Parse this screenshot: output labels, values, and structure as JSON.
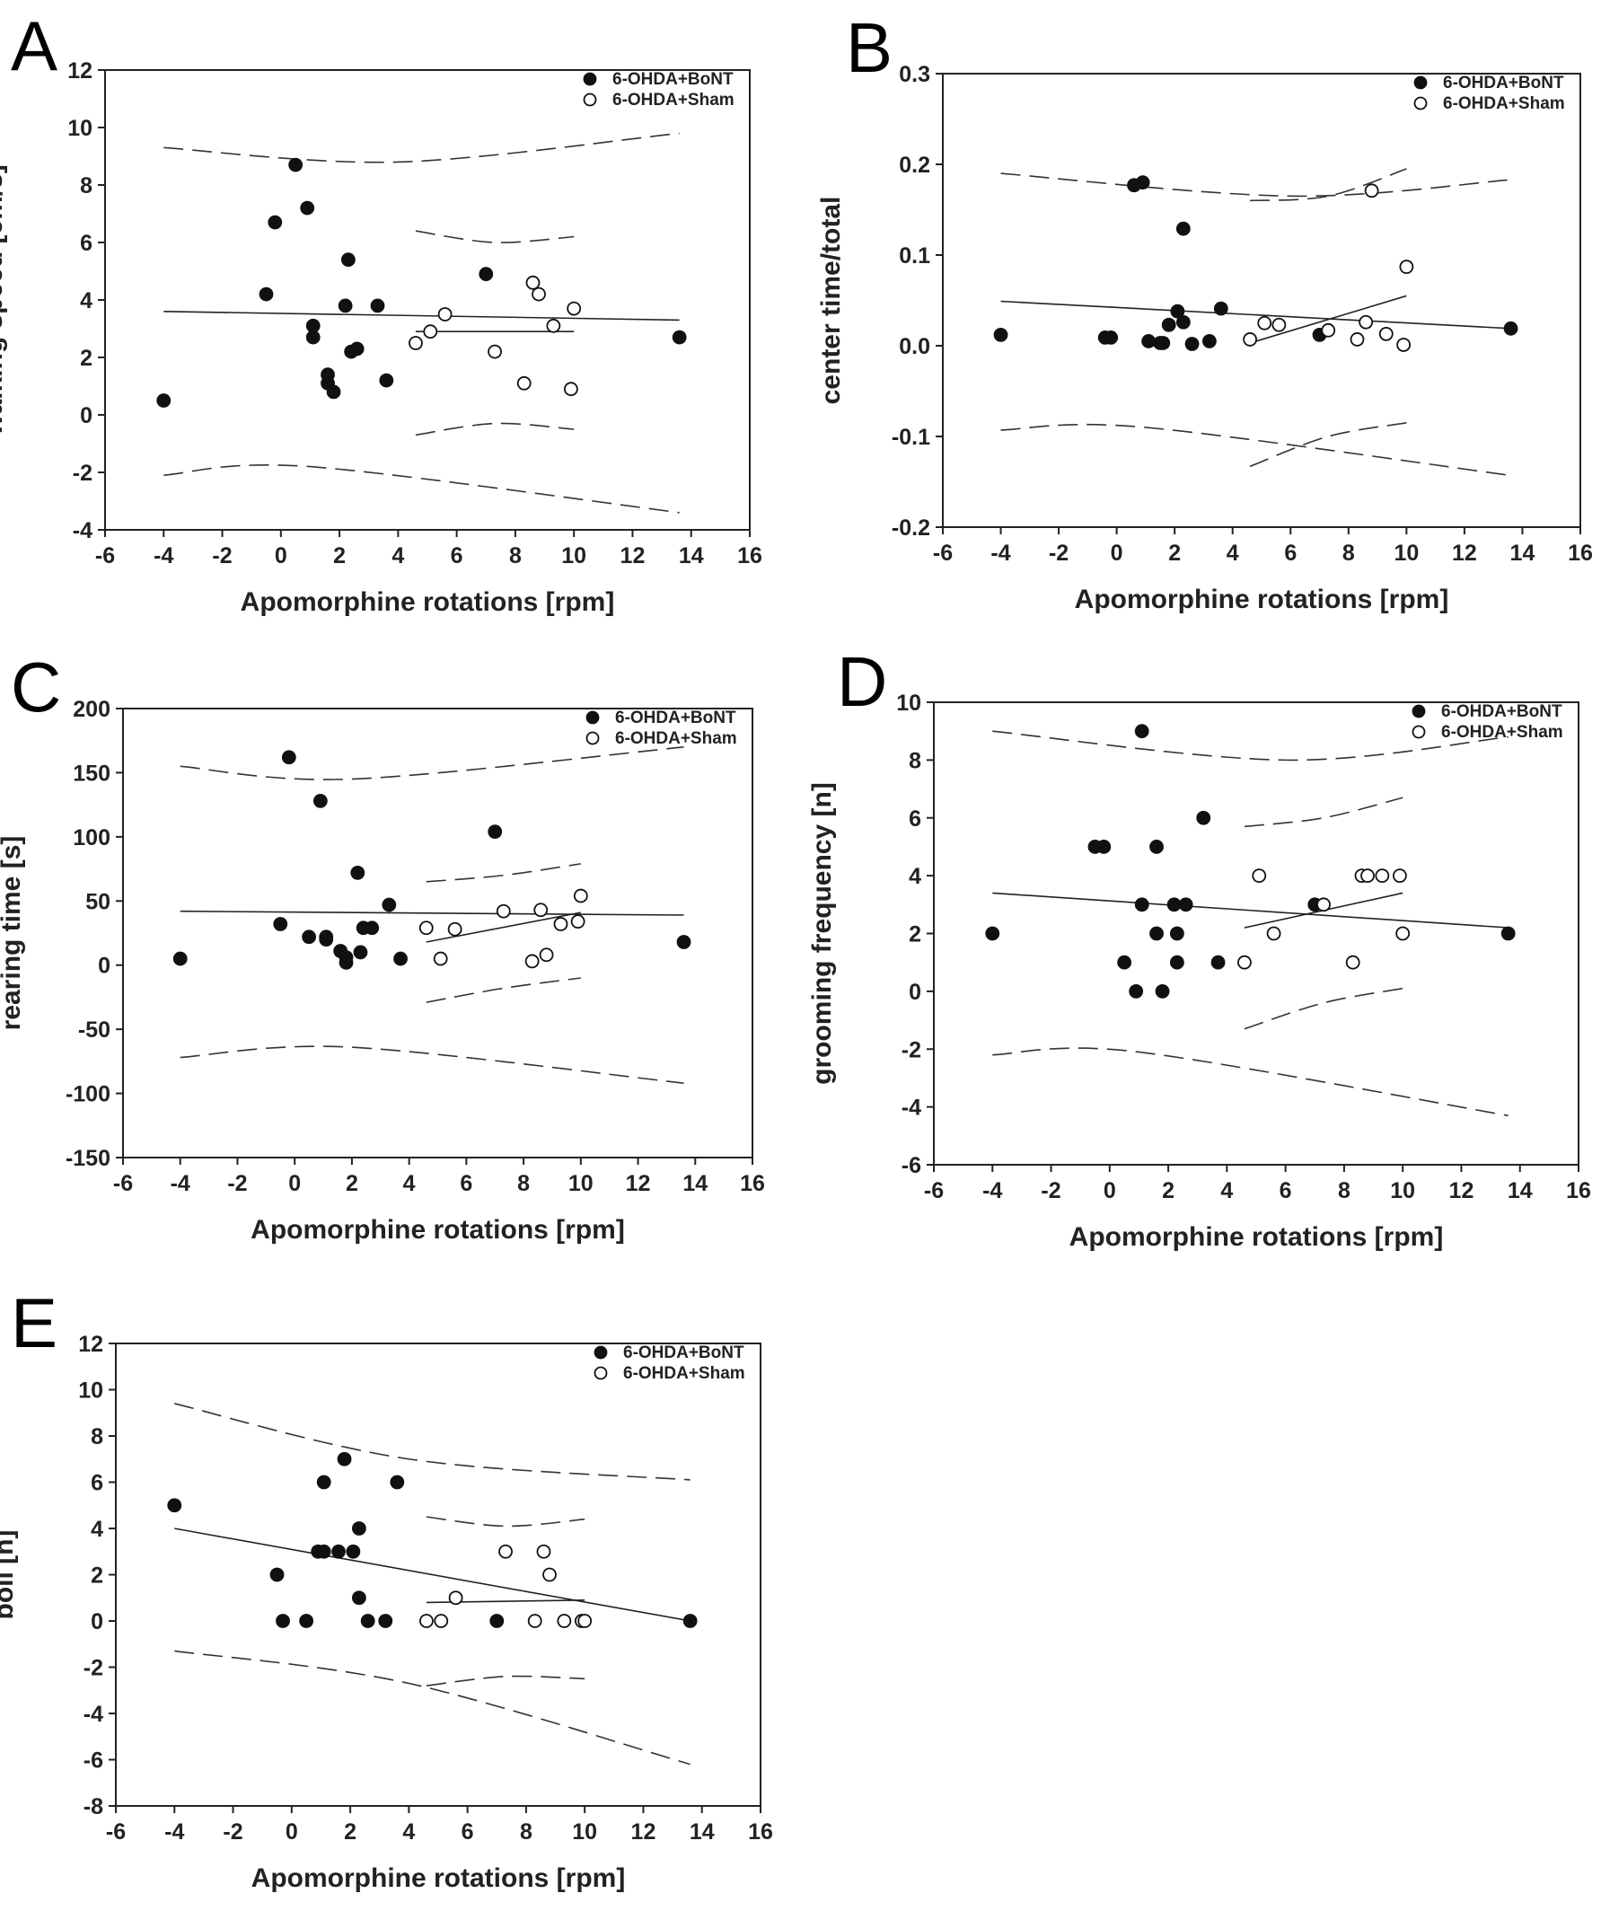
{
  "figure": {
    "x_axis": {
      "label": "Apomorphine rotations [rpm]",
      "range": [
        -6,
        16
      ],
      "ticks": [
        -6,
        -4,
        -2,
        0,
        2,
        4,
        6,
        8,
        10,
        12,
        14,
        16
      ]
    },
    "legend": {
      "bont": "6-OHDA+BoNT",
      "sham": "6-OHDA+Sham"
    },
    "colors": {
      "bont_fill": "#111111",
      "sham_fill": "#ffffff",
      "stroke": "#111111"
    }
  },
  "chart_data": [
    {
      "panel": "A",
      "type": "scatter",
      "xlabel": "Apomorphine rotations [rpm]",
      "ylabel": "walking speed [cm/s]",
      "xlim": [
        -6,
        16
      ],
      "ylim": [
        -4,
        12
      ],
      "yticks": [
        -4,
        -2,
        0,
        2,
        4,
        6,
        8,
        10,
        12
      ],
      "legend_position": "top-right",
      "series": [
        {
          "name": "6-OHDA+BoNT",
          "marker": "filled-circle",
          "points": [
            [
              -4,
              0.5
            ],
            [
              -0.5,
              4.2
            ],
            [
              -0.2,
              6.7
            ],
            [
              0.5,
              8.7
            ],
            [
              0.9,
              7.2
            ],
            [
              1.1,
              3.1
            ],
            [
              1.1,
              2.7
            ],
            [
              1.6,
              1.4
            ],
            [
              1.6,
              1.1
            ],
            [
              1.8,
              0.8
            ],
            [
              2.2,
              3.8
            ],
            [
              2.3,
              5.4
            ],
            [
              2.4,
              2.2
            ],
            [
              2.6,
              2.3
            ],
            [
              3.3,
              3.8
            ],
            [
              3.6,
              1.2
            ],
            [
              7.0,
              4.9
            ],
            [
              13.6,
              2.7
            ]
          ],
          "fit": {
            "x": [
              -4,
              13.6
            ],
            "y": [
              3.6,
              3.3
            ]
          },
          "ci_upper": {
            "x": [
              -4,
              4,
              13.6
            ],
            "y": [
              9.3,
              8.8,
              9.8
            ]
          },
          "ci_lower": {
            "x": [
              -4,
              1,
              13.6
            ],
            "y": [
              -2.1,
              -1.8,
              -3.4
            ]
          }
        },
        {
          "name": "6-OHDA+Sham",
          "marker": "open-circle",
          "points": [
            [
              4.6,
              2.5
            ],
            [
              5.1,
              2.9
            ],
            [
              5.6,
              3.5
            ],
            [
              7.3,
              2.2
            ],
            [
              8.3,
              1.1
            ],
            [
              8.6,
              4.6
            ],
            [
              8.8,
              4.2
            ],
            [
              9.3,
              3.1
            ],
            [
              9.9,
              0.9
            ],
            [
              10.0,
              3.7
            ]
          ],
          "fit": {
            "x": [
              4.6,
              10.0
            ],
            "y": [
              2.9,
              2.9
            ]
          },
          "ci_upper": {
            "x": [
              4.6,
              7.3,
              10.0
            ],
            "y": [
              6.4,
              6.0,
              6.2
            ]
          },
          "ci_lower": {
            "x": [
              4.6,
              7.3,
              10.0
            ],
            "y": [
              -0.7,
              -0.3,
              -0.5
            ]
          }
        }
      ]
    },
    {
      "panel": "B",
      "type": "scatter",
      "xlabel": "Apomorphine rotations [rpm]",
      "ylabel": "center time/total",
      "xlim": [
        -6,
        16
      ],
      "ylim": [
        -0.2,
        0.3
      ],
      "yticks": [
        -0.2,
        -0.1,
        0.0,
        0.1,
        0.2,
        0.3
      ],
      "legend_position": "top-right",
      "series": [
        {
          "name": "6-OHDA+BoNT",
          "marker": "filled-circle",
          "points": [
            [
              -4,
              0.012
            ],
            [
              -0.4,
              0.009
            ],
            [
              -0.2,
              0.009
            ],
            [
              0.6,
              0.177
            ],
            [
              0.9,
              0.18
            ],
            [
              1.1,
              0.005
            ],
            [
              1.5,
              0.003
            ],
            [
              1.6,
              0.003
            ],
            [
              1.8,
              0.023
            ],
            [
              2.1,
              0.038
            ],
            [
              2.3,
              0.026
            ],
            [
              2.3,
              0.129
            ],
            [
              2.6,
              0.002
            ],
            [
              3.2,
              0.005
            ],
            [
              3.6,
              0.041
            ],
            [
              7.0,
              0.012
            ],
            [
              13.6,
              0.019
            ]
          ],
          "fit": {
            "x": [
              -4,
              13.6
            ],
            "y": [
              0.049,
              0.019
            ]
          },
          "ci_upper": {
            "x": [
              -4,
              6,
              13.6
            ],
            "y": [
              0.19,
              0.165,
              0.183
            ]
          },
          "ci_lower": {
            "x": [
              -4,
              1,
              13.6
            ],
            "y": [
              -0.093,
              -0.09,
              -0.143
            ]
          }
        },
        {
          "name": "6-OHDA+Sham",
          "marker": "open-circle",
          "points": [
            [
              4.6,
              0.007
            ],
            [
              5.1,
              0.025
            ],
            [
              5.6,
              0.023
            ],
            [
              7.3,
              0.017
            ],
            [
              8.3,
              0.007
            ],
            [
              8.6,
              0.026
            ],
            [
              8.8,
              0.171
            ],
            [
              9.3,
              0.013
            ],
            [
              9.9,
              0.001
            ],
            [
              10.0,
              0.087
            ]
          ],
          "fit": {
            "x": [
              4.6,
              10.0
            ],
            "y": [
              0.003,
              0.055
            ]
          },
          "ci_upper": {
            "x": [
              4.6,
              7.3,
              10.0
            ],
            "y": [
              0.16,
              0.165,
              0.195
            ]
          },
          "ci_lower": {
            "x": [
              4.6,
              7.3,
              10.0
            ],
            "y": [
              -0.133,
              -0.1,
              -0.085
            ]
          }
        }
      ]
    },
    {
      "panel": "C",
      "type": "scatter",
      "xlabel": "Apomorphine rotations [rpm]",
      "ylabel": "rearing time [s]",
      "xlim": [
        -6,
        16
      ],
      "ylim": [
        -150,
        200
      ],
      "yticks": [
        -150,
        -100,
        -50,
        0,
        50,
        100,
        150,
        200
      ],
      "legend_position": "top-right",
      "series": [
        {
          "name": "6-OHDA+BoNT",
          "marker": "filled-circle",
          "points": [
            [
              -4,
              5
            ],
            [
              -0.5,
              32
            ],
            [
              -0.2,
              162
            ],
            [
              0.5,
              22
            ],
            [
              0.9,
              128
            ],
            [
              1.1,
              20
            ],
            [
              1.1,
              22
            ],
            [
              1.6,
              11
            ],
            [
              1.8,
              6
            ],
            [
              1.8,
              2
            ],
            [
              2.2,
              72
            ],
            [
              2.3,
              10
            ],
            [
              2.4,
              29
            ],
            [
              2.7,
              29
            ],
            [
              3.3,
              47
            ],
            [
              3.7,
              5
            ],
            [
              7.0,
              104
            ],
            [
              13.6,
              18
            ]
          ],
          "fit": {
            "x": [
              -4,
              13.6
            ],
            "y": [
              42,
              39
            ]
          },
          "ci_upper": {
            "x": [
              -4,
              2,
              13.6
            ],
            "y": [
              155,
              145,
              170
            ]
          },
          "ci_lower": {
            "x": [
              -4,
              2,
              13.6
            ],
            "y": [
              -72,
              -64,
              -92
            ]
          }
        },
        {
          "name": "6-OHDA+Sham",
          "marker": "open-circle",
          "points": [
            [
              4.6,
              29
            ],
            [
              5.1,
              5
            ],
            [
              5.6,
              28
            ],
            [
              7.3,
              42
            ],
            [
              8.3,
              3
            ],
            [
              8.6,
              43
            ],
            [
              8.8,
              8
            ],
            [
              9.3,
              32
            ],
            [
              9.9,
              34
            ],
            [
              10.0,
              54
            ]
          ],
          "fit": {
            "x": [
              4.6,
              10.0
            ],
            "y": [
              18,
              41
            ]
          },
          "ci_upper": {
            "x": [
              4.6,
              7.3,
              10.0
            ],
            "y": [
              65,
              70,
              79
            ]
          },
          "ci_lower": {
            "x": [
              4.6,
              7.3,
              10.0
            ],
            "y": [
              -29,
              -18,
              -10
            ]
          }
        }
      ]
    },
    {
      "panel": "D",
      "type": "scatter",
      "xlabel": "Apomorphine rotations [rpm]",
      "ylabel": "grooming frequency [n]",
      "xlim": [
        -6,
        16
      ],
      "ylim": [
        -6,
        10
      ],
      "yticks": [
        -6,
        -4,
        -2,
        0,
        2,
        4,
        6,
        8,
        10
      ],
      "legend_position": "top-right",
      "series": [
        {
          "name": "6-OHDA+BoNT",
          "marker": "filled-circle",
          "points": [
            [
              -4,
              2
            ],
            [
              -0.5,
              5
            ],
            [
              -0.2,
              5
            ],
            [
              0.5,
              1
            ],
            [
              0.9,
              0
            ],
            [
              1.1,
              3
            ],
            [
              1.1,
              9
            ],
            [
              1.6,
              5
            ],
            [
              1.6,
              2
            ],
            [
              1.8,
              0
            ],
            [
              2.2,
              3
            ],
            [
              2.3,
              2
            ],
            [
              2.3,
              1
            ],
            [
              2.6,
              3
            ],
            [
              3.2,
              6
            ],
            [
              3.7,
              1
            ],
            [
              7.0,
              3
            ],
            [
              13.6,
              2
            ]
          ],
          "fit": {
            "x": [
              -4,
              13.6
            ],
            "y": [
              3.4,
              2.2
            ]
          },
          "ci_upper": {
            "x": [
              -4,
              6,
              13.6
            ],
            "y": [
              9.0,
              8.0,
              8.8
            ]
          },
          "ci_lower": {
            "x": [
              -4,
              1,
              13.6
            ],
            "y": [
              -2.2,
              -2.1,
              -4.3
            ]
          }
        },
        {
          "name": "6-OHDA+Sham",
          "marker": "open-circle",
          "points": [
            [
              4.6,
              1
            ],
            [
              5.1,
              4
            ],
            [
              5.6,
              2
            ],
            [
              7.3,
              3
            ],
            [
              8.3,
              1
            ],
            [
              8.6,
              4
            ],
            [
              8.8,
              4
            ],
            [
              9.3,
              4
            ],
            [
              9.9,
              4
            ],
            [
              10.0,
              2
            ]
          ],
          "fit": {
            "x": [
              4.6,
              10.0
            ],
            "y": [
              2.2,
              3.4
            ]
          },
          "ci_upper": {
            "x": [
              4.6,
              7.3,
              10.0
            ],
            "y": [
              5.7,
              6.0,
              6.7
            ]
          },
          "ci_lower": {
            "x": [
              4.6,
              7.3,
              10.0
            ],
            "y": [
              -1.3,
              -0.4,
              0.1
            ]
          }
        }
      ]
    },
    {
      "panel": "E",
      "type": "scatter",
      "xlabel": "Apomorphine rotations [rpm]",
      "ylabel": "boli [n]",
      "xlim": [
        -6,
        16
      ],
      "ylim": [
        -8,
        12
      ],
      "yticks": [
        -8,
        -6,
        -4,
        -2,
        0,
        2,
        4,
        6,
        8,
        10,
        12
      ],
      "legend_position": "top-right",
      "series": [
        {
          "name": "6-OHDA+BoNT",
          "marker": "filled-circle",
          "points": [
            [
              -4,
              5
            ],
            [
              -0.5,
              2
            ],
            [
              -0.3,
              0
            ],
            [
              0.5,
              0
            ],
            [
              0.9,
              3
            ],
            [
              1.1,
              6
            ],
            [
              1.1,
              3
            ],
            [
              1.6,
              3
            ],
            [
              1.8,
              7
            ],
            [
              2.1,
              3
            ],
            [
              2.3,
              4
            ],
            [
              2.3,
              1
            ],
            [
              2.6,
              0
            ],
            [
              3.2,
              0
            ],
            [
              3.6,
              6
            ],
            [
              7.0,
              0
            ],
            [
              13.6,
              0
            ]
          ],
          "fit": {
            "x": [
              -4,
              13.6
            ],
            "y": [
              4.0,
              0.0
            ]
          },
          "ci_upper": {
            "x": [
              -4,
              4,
              13.6
            ],
            "y": [
              9.4,
              7.0,
              6.1
            ]
          },
          "ci_lower": {
            "x": [
              -4,
              4,
              13.6
            ],
            "y": [
              -1.3,
              -2.7,
              -6.2
            ]
          }
        },
        {
          "name": "6-OHDA+Sham",
          "marker": "open-circle",
          "points": [
            [
              4.6,
              0
            ],
            [
              5.1,
              0
            ],
            [
              5.6,
              1
            ],
            [
              7.3,
              3
            ],
            [
              8.3,
              0
            ],
            [
              8.6,
              3
            ],
            [
              8.8,
              2
            ],
            [
              9.3,
              0
            ],
            [
              9.9,
              0
            ],
            [
              10.0,
              0
            ]
          ],
          "fit": {
            "x": [
              4.6,
              10.0
            ],
            "y": [
              0.8,
              0.9
            ]
          },
          "ci_upper": {
            "x": [
              4.6,
              7.3,
              10.0
            ],
            "y": [
              4.5,
              4.1,
              4.4
            ]
          },
          "ci_lower": {
            "x": [
              4.6,
              7.3,
              10.0
            ],
            "y": [
              -2.8,
              -2.4,
              -2.5
            ]
          }
        }
      ]
    }
  ]
}
